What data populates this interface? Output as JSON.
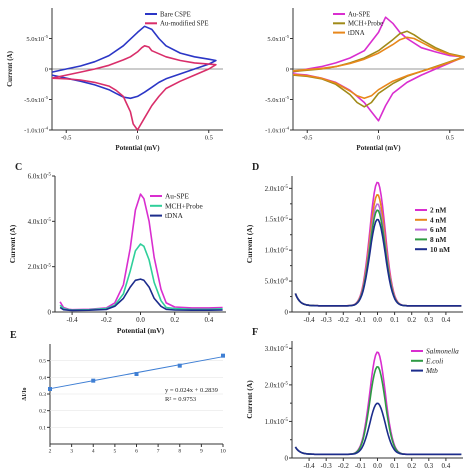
{
  "chart_data": [
    {
      "id": "A",
      "letter": "",
      "type": "line",
      "xlabel": "Potential (mV)",
      "ylabel": "Current (A)",
      "xlim": [
        -0.6,
        0.6
      ],
      "ylim": [
        -0.0001,
        0.0001
      ],
      "xticks": [
        -0.5,
        0,
        0.5
      ],
      "xtick_labels": [
        "-0.5",
        "0",
        "0.5"
      ],
      "yticks": [
        -0.0001,
        -5e-05,
        0,
        5e-05
      ],
      "ytick_labels": [
        "-1.0x10-4",
        "-5.0x10-5",
        "0",
        "5.0x10-5"
      ],
      "zero_line": true,
      "legend_position": "top-right",
      "series": [
        {
          "name": "Bare CSPE",
          "color": "#2b36c6",
          "x": [
            -0.6,
            -0.5,
            -0.4,
            -0.3,
            -0.2,
            -0.1,
            0,
            0.05,
            0.1,
            0.15,
            0.2,
            0.3,
            0.4,
            0.5,
            0.55,
            0.5,
            0.4,
            0.3,
            0.2,
            0.15,
            0.1,
            0.05,
            0,
            -0.05,
            -0.1,
            -0.15,
            -0.2,
            -0.3,
            -0.4,
            -0.5,
            -0.6
          ],
          "y": [
            -5e-06,
            0,
            5e-06,
            1.2e-05,
            2.2e-05,
            3.8e-05,
            6e-05,
            7e-05,
            6.5e-05,
            5e-05,
            3.8e-05,
            2.6e-05,
            2e-05,
            1.6e-05,
            1.4e-05,
            8e-06,
            0,
            -8e-06,
            -1.6e-05,
            -2.2e-05,
            -3e-05,
            -3.8e-05,
            -4.5e-05,
            -4.8e-05,
            -4.6e-05,
            -4e-05,
            -3.4e-05,
            -2.6e-05,
            -2e-05,
            -1.5e-05,
            -1e-05
          ]
        },
        {
          "name": "Au-modified SPE",
          "color": "#d92e6a",
          "x": [
            -0.6,
            -0.5,
            -0.4,
            -0.3,
            -0.2,
            -0.1,
            -0.05,
            0,
            0.03,
            0.05,
            0.08,
            0.1,
            0.2,
            0.3,
            0.4,
            0.5,
            0.55,
            0.5,
            0.4,
            0.3,
            0.2,
            0.15,
            0.1,
            0.05,
            0,
            -0.03,
            -0.05,
            -0.08,
            -0.1,
            -0.15,
            -0.2,
            -0.3,
            -0.4,
            -0.5,
            -0.6
          ],
          "y": [
            -1.5e-05,
            -1e-05,
            -5e-06,
            0,
            6e-06,
            1.5e-05,
            2e-05,
            2.8e-05,
            3.5e-05,
            3.8e-05,
            3.6e-05,
            3e-05,
            2e-05,
            1.4e-05,
            1e-05,
            8e-06,
            7e-06,
            0,
            -1e-05,
            -2e-05,
            -3.2e-05,
            -4.5e-05,
            -6e-05,
            -8e-05,
            -0.0001,
            -9e-05,
            -7e-05,
            -5.5e-05,
            -4.5e-05,
            -3.5e-05,
            -2.8e-05,
            -2.2e-05,
            -1.8e-05,
            -1.6e-05,
            -1.5e-05
          ]
        }
      ]
    },
    {
      "id": "B",
      "letter": "",
      "type": "line",
      "xlabel": "Potential (mV)",
      "ylabel": "",
      "xlim": [
        -0.6,
        0.6
      ],
      "ylim": [
        -0.0001,
        0.0001
      ],
      "xticks": [
        -0.5,
        0,
        0.5
      ],
      "xtick_labels": [
        "-0.5",
        "0",
        "0.5"
      ],
      "yticks": [
        -0.0001,
        -5e-05,
        0,
        5e-05
      ],
      "ytick_labels": [
        "-1.0x10-4",
        "-5.0x10-5",
        "0",
        "5.0x10-5"
      ],
      "zero_line": true,
      "legend_position": "top-left",
      "series": [
        {
          "name": "Au-SPE",
          "color": "#d92ecf",
          "x": [
            -0.6,
            -0.5,
            -0.4,
            -0.3,
            -0.2,
            -0.1,
            0,
            0.05,
            0.1,
            0.15,
            0.2,
            0.3,
            0.4,
            0.5,
            0.6,
            0.5,
            0.4,
            0.3,
            0.2,
            0.1,
            0.05,
            0,
            -0.05,
            -0.1,
            -0.2,
            -0.3,
            -0.4,
            -0.5,
            -0.6
          ],
          "y": [
            -5e-06,
            0,
            4e-06,
            1e-05,
            1.8e-05,
            3e-05,
            6e-05,
            8.5e-05,
            7.5e-05,
            6e-05,
            5e-05,
            3.5e-05,
            2.8e-05,
            2.2e-05,
            2e-05,
            1e-05,
            0,
            -1e-05,
            -2.2e-05,
            -4e-05,
            -6e-05,
            -8.5e-05,
            -7e-05,
            -5.5e-05,
            -3.5e-05,
            -2.2e-05,
            -1.5e-05,
            -1e-05,
            -8e-06
          ]
        },
        {
          "name": "MCH+Probe",
          "color": "#a08a18",
          "x": [
            -0.6,
            -0.5,
            -0.4,
            -0.3,
            -0.2,
            -0.1,
            0,
            0.1,
            0.15,
            0.2,
            0.25,
            0.3,
            0.4,
            0.5,
            0.6,
            0.5,
            0.4,
            0.3,
            0.2,
            0.1,
            0,
            -0.05,
            -0.1,
            -0.15,
            -0.2,
            -0.3,
            -0.4,
            -0.5,
            -0.6
          ],
          "y": [
            -4e-06,
            -2e-06,
            0,
            4e-06,
            1e-05,
            1.8e-05,
            3e-05,
            4.8e-05,
            5.8e-05,
            6.2e-05,
            5.6e-05,
            4.8e-05,
            3.5e-05,
            2.5e-05,
            2e-05,
            1.2e-05,
            4e-06,
            -4e-06,
            -1.2e-05,
            -2.4e-05,
            -4e-05,
            -5.5e-05,
            -6.2e-05,
            -5.5e-05,
            -4.2e-05,
            -2.5e-05,
            -1.6e-05,
            -1.2e-05,
            -1e-05
          ]
        },
        {
          "name": "tDNA",
          "color": "#e8871b",
          "x": [
            -0.6,
            -0.5,
            -0.4,
            -0.3,
            -0.2,
            -0.1,
            0,
            0.1,
            0.15,
            0.2,
            0.25,
            0.3,
            0.4,
            0.5,
            0.6,
            0.5,
            0.4,
            0.3,
            0.2,
            0.1,
            0,
            -0.05,
            -0.1,
            -0.15,
            -0.2,
            -0.3,
            -0.4,
            -0.5,
            -0.6
          ],
          "y": [
            -3e-06,
            -1e-06,
            1e-06,
            4e-06,
            9e-06,
            1.6e-05,
            2.6e-05,
            4e-05,
            4.8e-05,
            5.2e-05,
            5e-05,
            4.4e-05,
            3.2e-05,
            2.4e-05,
            1.9e-05,
            1.1e-05,
            3e-06,
            -4e-06,
            -1.1e-05,
            -2e-05,
            -3.4e-05,
            -4.4e-05,
            -4.8e-05,
            -4.4e-05,
            -3.6e-05,
            -2.3e-05,
            -1.5e-05,
            -1.1e-05,
            -9e-06
          ]
        }
      ]
    },
    {
      "id": "C",
      "letter": "C",
      "type": "line",
      "xlabel": "Potential (mV)",
      "ylabel": "Current (A)",
      "xlim": [
        -0.5,
        0.5
      ],
      "ylim": [
        0,
        6e-05
      ],
      "xticks": [
        -0.4,
        -0.2,
        0,
        0.2,
        0.4
      ],
      "xtick_labels": [
        "-0.4",
        "-0.2",
        "0.0",
        "0.2",
        "0.4"
      ],
      "yticks": [
        0,
        2e-05,
        4e-05,
        6e-05
      ],
      "ytick_labels": [
        "0",
        "2.0x10-5",
        "4.0x10-5",
        "6.0x10-5"
      ],
      "zero_line": false,
      "legend_position": "top-right",
      "series": [
        {
          "name": "Au-SPE",
          "color": "#d92ecf",
          "x": [
            -0.47,
            -0.45,
            -0.42,
            -0.4,
            -0.3,
            -0.2,
            -0.15,
            -0.1,
            -0.06,
            -0.03,
            0,
            0.02,
            0.05,
            0.08,
            0.12,
            0.15,
            0.2,
            0.3,
            0.4,
            0.48
          ],
          "y": [
            4.5e-06,
            2e-06,
            1.2e-06,
            1e-06,
            1.2e-06,
            1.8e-06,
            4e-06,
            1.2e-05,
            2.8e-05,
            4.5e-05,
            5.2e-05,
            5e-05,
            4e-05,
            2.4e-05,
            1e-05,
            4e-06,
            2.2e-06,
            1.8e-06,
            1.8e-06,
            2e-06
          ]
        },
        {
          "name": "MCH+Probe",
          "color": "#2fcf9a",
          "x": [
            -0.47,
            -0.45,
            -0.42,
            -0.4,
            -0.3,
            -0.2,
            -0.15,
            -0.1,
            -0.06,
            -0.03,
            0,
            0.02,
            0.05,
            0.08,
            0.12,
            0.15,
            0.2,
            0.3,
            0.4,
            0.48
          ],
          "y": [
            3e-06,
            1.5e-06,
            1e-06,
            9e-07,
            1e-06,
            1.5e-06,
            3e-06,
            8e-06,
            1.8e-05,
            2.7e-05,
            3e-05,
            2.9e-05,
            2.3e-05,
            1.3e-05,
            5e-06,
            2e-06,
            1.5e-06,
            1.2e-06,
            1.2e-06,
            1.4e-06
          ]
        },
        {
          "name": "tDNA",
          "color": "#1c2c8c",
          "x": [
            -0.47,
            -0.45,
            -0.42,
            -0.4,
            -0.3,
            -0.2,
            -0.15,
            -0.1,
            -0.06,
            -0.03,
            0,
            0.02,
            0.05,
            0.08,
            0.12,
            0.15,
            0.2,
            0.3,
            0.4,
            0.48
          ],
          "y": [
            2e-06,
            1e-06,
            8e-07,
            7e-07,
            8e-07,
            1.1e-06,
            2.5e-06,
            6e-06,
            1.1e-05,
            1.4e-05,
            1.45e-05,
            1.4e-05,
            1.1e-05,
            6e-06,
            2.5e-06,
            1.2e-06,
            9e-07,
            8e-07,
            8e-07,
            9e-07
          ]
        }
      ]
    },
    {
      "id": "D",
      "letter": "D",
      "type": "line",
      "xlabel": "",
      "ylabel": "Current (A)",
      "xlim": [
        -0.5,
        0.5
      ],
      "ylim": [
        0,
        2.2e-05
      ],
      "xticks": [
        -0.4,
        -0.3,
        -0.2,
        -0.1,
        0,
        0.1,
        0.2,
        0.3,
        0.4
      ],
      "xtick_labels": [
        "-0.4",
        "-0.3",
        "-0.2",
        "-0.1",
        "0.0",
        "0.1",
        "0.2",
        "0.3",
        "0.4"
      ],
      "yticks": [
        0,
        5e-06,
        1e-05,
        1.5e-05,
        2e-05
      ],
      "ytick_labels": [
        "0",
        "5.0x10-6",
        "1.0x10-5",
        "1.5x10-5",
        "2.0x10-5"
      ],
      "extra_yticks": [
        2.5e-06,
        7.5e-06,
        1.25e-05,
        1.75e-05
      ],
      "extra_ytick_labels": [
        "2.5x10-6",
        "7.5x10-6",
        "1.25x10-5",
        "1.75x10-5"
      ],
      "zero_line": false,
      "legend_position": "right",
      "series": [
        {
          "name": "2 nM",
          "color": "#d92ecf",
          "peak": 2e-05
        },
        {
          "name": "4 nM",
          "color": "#e8871b",
          "peak": 1.8e-05
        },
        {
          "name": "6 nM",
          "color": "#c06ad8",
          "peak": 1.65e-05
        },
        {
          "name": "8 nM",
          "color": "#2e9a44",
          "peak": 1.55e-05
        },
        {
          "name": "10 nM",
          "color": "#1c2c8c",
          "peak": 1.4e-05
        }
      ]
    },
    {
      "id": "E",
      "letter": "E",
      "type": "scatter",
      "xlabel": "",
      "ylabel": "ΔI/Io",
      "xlim": [
        2,
        10
      ],
      "ylim": [
        0,
        0.6
      ],
      "xticks": [
        2,
        3,
        4,
        5,
        6,
        7,
        8,
        9,
        10
      ],
      "xtick_labels": [
        "2",
        "3",
        "4",
        "5",
        "6",
        "7",
        "8",
        "9",
        "10"
      ],
      "yticks": [
        0.1,
        0.2,
        0.3,
        0.4,
        0.5
      ],
      "ytick_labels": [
        "0.1",
        "0.2",
        "0.3",
        "0.4",
        "0.5"
      ],
      "points": {
        "x": [
          2,
          4,
          6,
          8,
          10
        ],
        "y": [
          0.33,
          0.38,
          0.42,
          0.47,
          0.53
        ]
      },
      "fit": {
        "slope": 0.024,
        "intercept": 0.2839
      },
      "equation": "y = 0.024x + 0.2839",
      "r2": "R² = 0.9753",
      "color": "#3f7fd4"
    },
    {
      "id": "F",
      "letter": "F",
      "type": "line",
      "xlabel": "",
      "ylabel": "Current (A)",
      "xlim": [
        -0.5,
        0.5
      ],
      "ylim": [
        0,
        3.2e-05
      ],
      "xticks": [
        -0.4,
        -0.3,
        -0.2,
        -0.1,
        0,
        0.1,
        0.2,
        0.3,
        0.4
      ],
      "xtick_labels": [
        "-0.4",
        "-0.3",
        "-0.2",
        "-0.1",
        "0.0",
        "0.1",
        "0.2",
        "0.3",
        "0.4"
      ],
      "yticks": [
        0,
        1e-05,
        2e-05,
        3e-05
      ],
      "ytick_labels": [
        "0",
        "1.0x10-5",
        "2.0x10-5",
        "3.0x10-5"
      ],
      "extra_yticks": [
        5e-06,
        1.5e-05,
        2.5e-05
      ],
      "extra_ytick_labels": [
        "5.0x10-6",
        "1.5x10-5",
        "2.5x10-5"
      ],
      "zero_line": false,
      "legend_position": "top-right",
      "series": [
        {
          "name": "Salmonella",
          "italic": true,
          "color": "#d92ecf",
          "peak": 2.8e-05
        },
        {
          "name": "E.coli",
          "italic": true,
          "color": "#2e9a44",
          "peak": 2.4e-05
        },
        {
          "name": "Mtb",
          "italic": true,
          "color": "#1c2c8c",
          "peak": 1.4e-05
        }
      ]
    }
  ]
}
